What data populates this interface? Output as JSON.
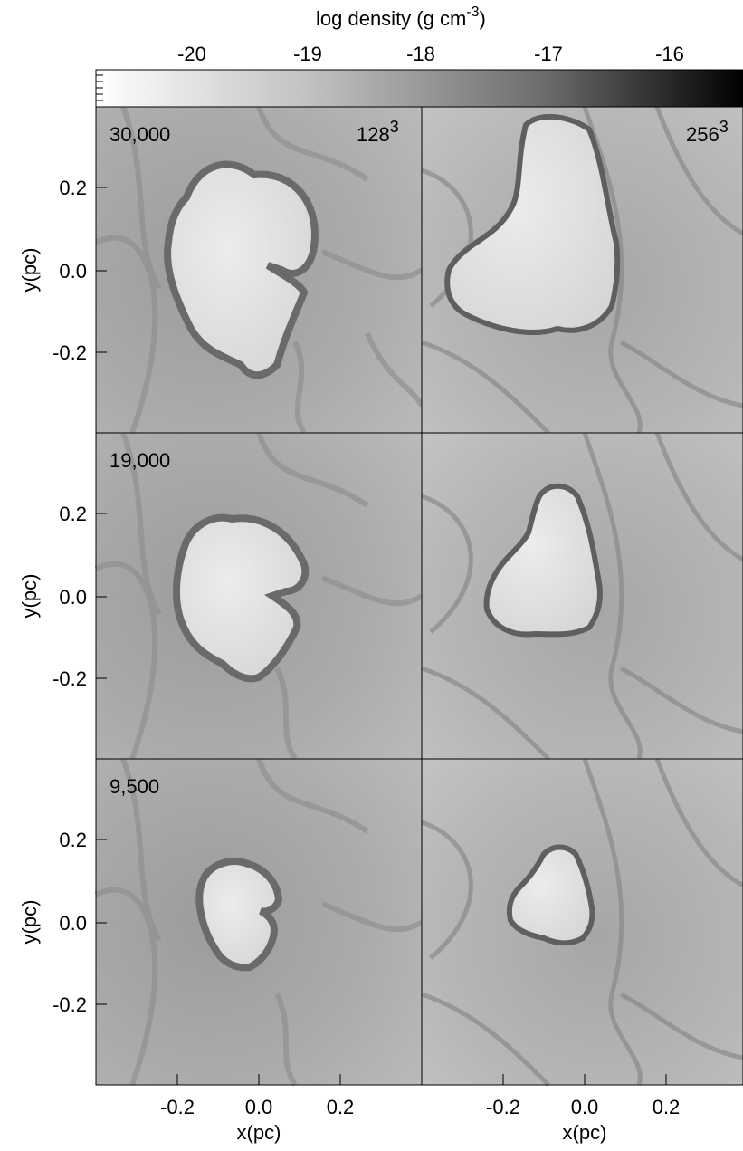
{
  "colorbar": {
    "label": "log density (g cm",
    "label_sup": "-3",
    "label_close": ")",
    "ticks": [
      "-20",
      "-19",
      "-18",
      "-17",
      "-16"
    ],
    "range": [
      -20.5,
      -15.5
    ]
  },
  "axes": {
    "xlabel": "x(pc)",
    "ylabel": "y(pc)",
    "xticks": [
      "-0.2",
      "0.0",
      "0.2"
    ],
    "yticks": [
      "0.2",
      "0.0",
      "-0.2"
    ]
  },
  "columns": [
    {
      "resolution": "128",
      "resolution_sup": "3"
    },
    {
      "resolution": "256",
      "resolution_sup": "3"
    }
  ],
  "rows": [
    {
      "time_label": "30,000"
    },
    {
      "time_label": "19,000"
    },
    {
      "time_label": "9,500"
    }
  ],
  "colors": {
    "background_gray": "#a8a8a8",
    "bubble_interior": "#e2e2e2",
    "shell": "#6e6e6e",
    "filament": "#8a8a8a"
  }
}
